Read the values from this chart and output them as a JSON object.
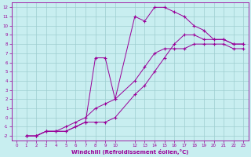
{
  "xlabel": "Windchill (Refroidissement éolien,°C)",
  "bg_color": "#c8eef0",
  "grid_color": "#9ecdd0",
  "line_color": "#990099",
  "xlim": [
    -0.5,
    23.5
  ],
  "ylim": [
    -2.5,
    12.5
  ],
  "xticks": [
    0,
    1,
    2,
    3,
    4,
    5,
    6,
    7,
    8,
    9,
    10,
    12,
    13,
    14,
    15,
    16,
    17,
    18,
    19,
    20,
    21,
    22,
    23
  ],
  "yticks": [
    -2,
    -1,
    0,
    1,
    2,
    3,
    4,
    5,
    6,
    7,
    8,
    9,
    10,
    11,
    12
  ],
  "line1_x": [
    1,
    2,
    3,
    4,
    5,
    6,
    7,
    8,
    9,
    10,
    12,
    13,
    14,
    15,
    16,
    17,
    18,
    19,
    20,
    21,
    22,
    23
  ],
  "line1_y": [
    -2,
    -2,
    -1.5,
    -1.5,
    -1.5,
    -1.0,
    -0.5,
    -0.5,
    -0.5,
    0.0,
    2.5,
    3.5,
    5.0,
    6.5,
    8.0,
    9.0,
    9.0,
    8.5,
    8.5,
    8.5,
    8.0,
    8.0
  ],
  "line2_x": [
    1,
    2,
    3,
    4,
    5,
    6,
    7,
    8,
    9,
    10,
    12,
    13,
    14,
    15,
    16,
    17,
    18,
    19,
    20,
    21,
    22,
    23
  ],
  "line2_y": [
    -2,
    -2,
    -1.5,
    -1.5,
    -1.5,
    -1.0,
    -0.5,
    6.5,
    6.5,
    2.0,
    11.0,
    10.5,
    12.0,
    12.0,
    11.5,
    11.0,
    10.0,
    9.5,
    8.5,
    8.5,
    8.0,
    8.0
  ],
  "line3_x": [
    1,
    2,
    3,
    4,
    5,
    6,
    7,
    8,
    9,
    10,
    12,
    13,
    14,
    15,
    16,
    17,
    18,
    19,
    20,
    21,
    22,
    23
  ],
  "line3_y": [
    -2,
    -2,
    -1.5,
    -1.5,
    -1.0,
    -0.5,
    0.0,
    1.0,
    1.5,
    2.0,
    4.0,
    5.5,
    7.0,
    7.5,
    7.5,
    7.5,
    8.0,
    8.0,
    8.0,
    8.0,
    7.5,
    7.5
  ]
}
